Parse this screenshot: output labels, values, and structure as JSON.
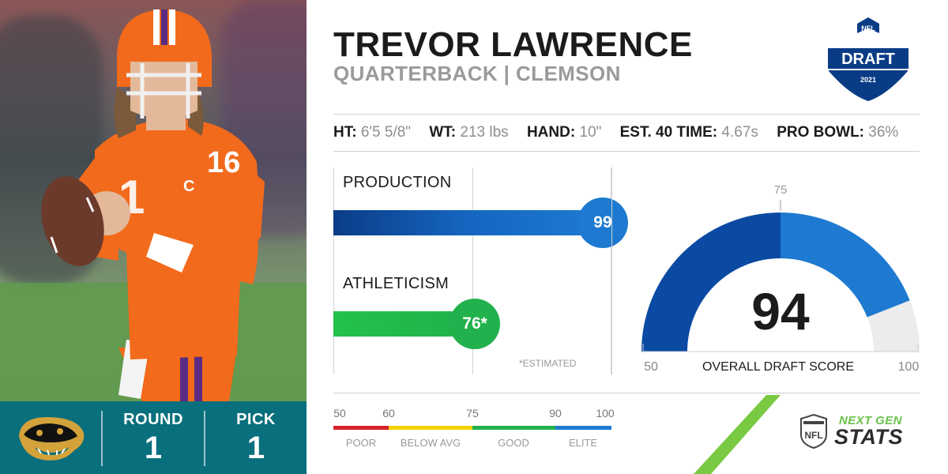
{
  "player": {
    "name": "TREVOR LAWRENCE",
    "position_school": "QUARTERBACK | CLEMSON",
    "jersey_number": "16",
    "jersey_letter": "C"
  },
  "draft_logo": {
    "top": "NFL",
    "middle": "DRAFT",
    "year": "2021"
  },
  "measurables": [
    {
      "label": "HT:",
      "value": "6'5 5/8\""
    },
    {
      "label": "WT:",
      "value": "213 lbs"
    },
    {
      "label": "HAND:",
      "value": "10\""
    },
    {
      "label": "EST. 40 TIME:",
      "value": "4.67s"
    },
    {
      "label": "PRO BOWL:",
      "value": "36%"
    }
  ],
  "pick": {
    "round_label": "ROUND",
    "round_value": "1",
    "pick_label": "PICK",
    "pick_value": "1"
  },
  "scores": {
    "production_label": "PRODUCTION",
    "production_value": "99",
    "production_score": 99,
    "athleticism_label": "ATHLETICISM",
    "athleticism_value": "76*",
    "athleticism_score": 76,
    "estimated_note": "*ESTIMATED"
  },
  "gauge": {
    "value": "94",
    "score": 94,
    "min_label": "50",
    "max_label": "100",
    "mid_label": "75",
    "caption": "OVERALL DRAFT SCORE"
  },
  "scale": {
    "ticks": [
      "50",
      "60",
      "75",
      "90",
      "100"
    ],
    "tiers": [
      "POOR",
      "BELOW AVG",
      "GOOD",
      "ELITE"
    ]
  },
  "branding": {
    "ngs_next": "NEXT GEN",
    "ngs_stats": "STATS",
    "shield_text": "NFL"
  },
  "colors": {
    "team_teal": "#0a6f7d",
    "production_blue": "#1565c0",
    "athleticism_green": "#22b14c",
    "gauge_dark_blue": "#0a4aa3",
    "gauge_light_blue": "#1e7ad1",
    "poor_red": "#d8232a",
    "below_avg_yellow": "#f5d100",
    "good_green": "#22b14c",
    "elite_blue": "#1e7ad1",
    "ngs_green": "#6cc24a"
  }
}
